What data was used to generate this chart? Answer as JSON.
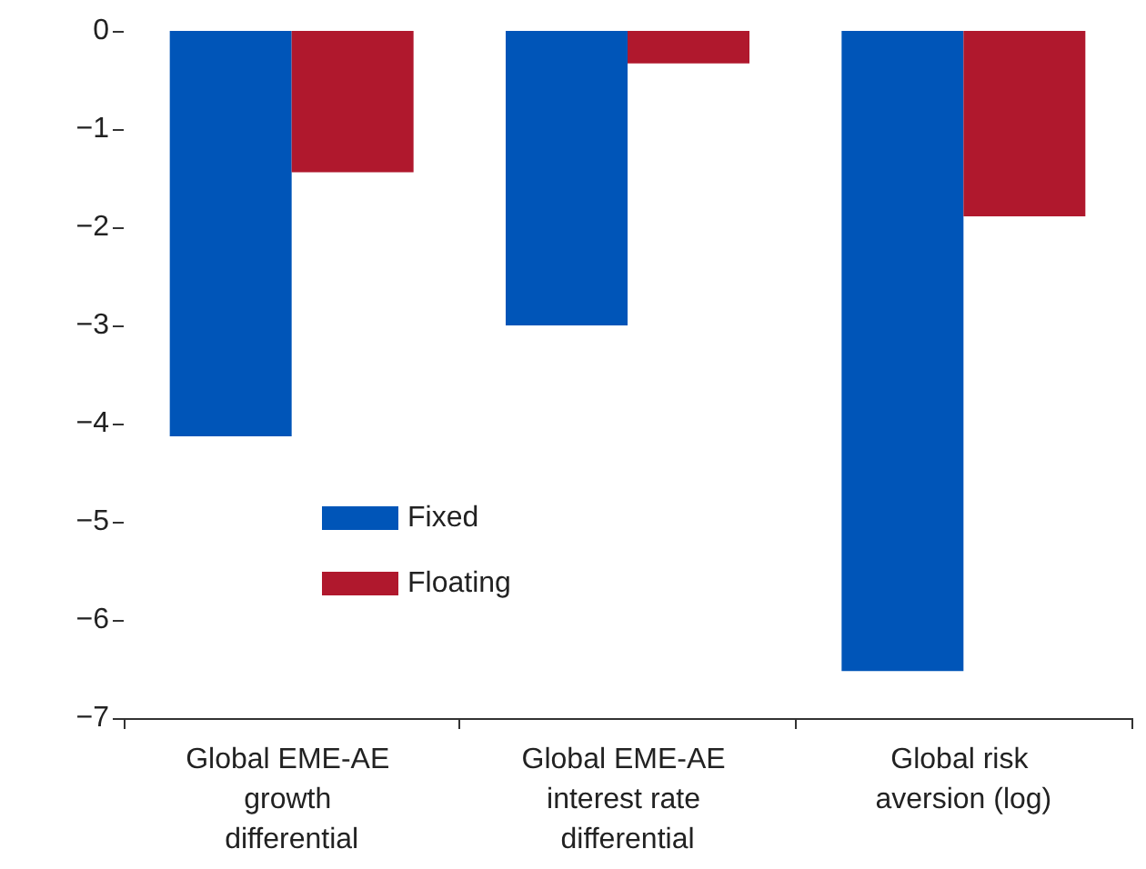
{
  "chart_data": {
    "type": "bar",
    "categories": [
      "Global EME-AE growth differential",
      "Global EME-AE interest rate differential",
      "Global risk aversion (log)"
    ],
    "series": [
      {
        "name": "Fixed",
        "color": "#0055b8",
        "values": [
          -4.13,
          -3.0,
          -6.52
        ]
      },
      {
        "name": "Floating",
        "color": "#b0182d",
        "values": [
          -1.44,
          -0.33,
          -1.89
        ]
      }
    ],
    "ylim": [
      -7,
      0
    ],
    "yticks": [
      {
        "value": -7,
        "label": "−7"
      },
      {
        "value": -6,
        "label": "−6"
      },
      {
        "value": -5,
        "label": "−5"
      },
      {
        "value": -4,
        "label": "−4"
      },
      {
        "value": -3,
        "label": "−3"
      },
      {
        "value": -2,
        "label": "−2"
      },
      {
        "value": -1,
        "label": "−1"
      },
      0
    ],
    "grid": false,
    "legend": "center left"
  }
}
